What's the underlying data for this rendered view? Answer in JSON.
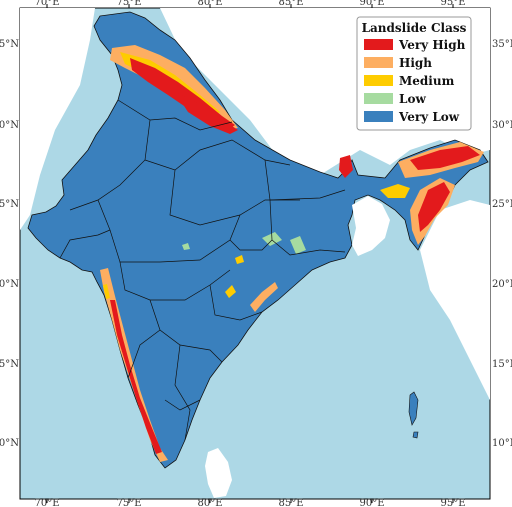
{
  "map": {
    "colors": {
      "sea": "#add8e6",
      "land_outside": "#ffffff",
      "very_high": "#e31a1c",
      "high": "#fdae61",
      "medium": "#fecc00",
      "low": "#a6dba0",
      "very_low": "#3a80bd"
    },
    "lon_ticks": [
      "70°E",
      "75°E",
      "80°E",
      "85°E",
      "90°E",
      "95°E"
    ],
    "lat_ticks": [
      "35°N",
      "30°N",
      "25°N",
      "20°N",
      "15°N",
      "10°N"
    ],
    "legend": {
      "title": "Landslide Class",
      "items": [
        {
          "label": "Very High",
          "color": "#e31a1c"
        },
        {
          "label": "High",
          "color": "#fdae61"
        },
        {
          "label": "Medium",
          "color": "#fecc00"
        },
        {
          "label": "Low",
          "color": "#a6dba0"
        },
        {
          "label": "Very Low",
          "color": "#3a80bd"
        }
      ]
    }
  }
}
